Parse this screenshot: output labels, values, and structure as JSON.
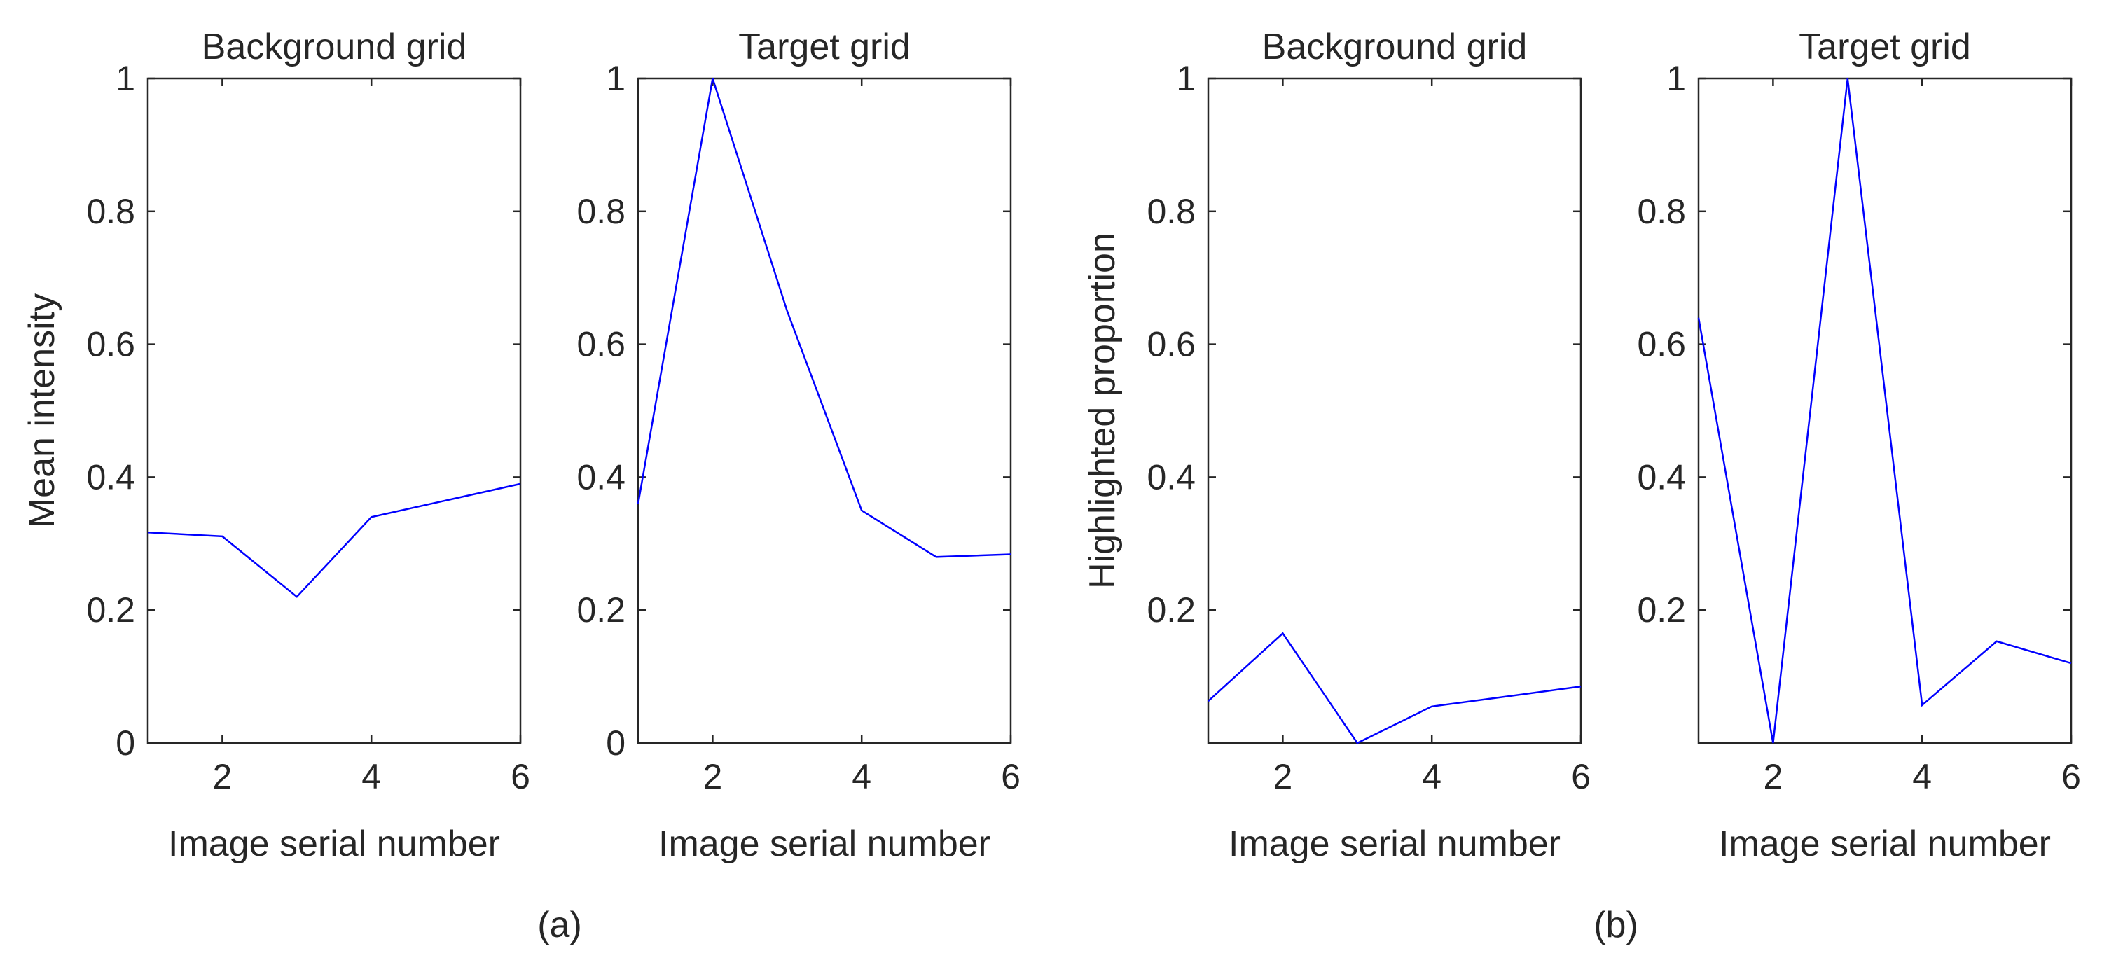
{
  "panel_labels": [
    "(a)",
    "(b)"
  ],
  "colors": {
    "line": "#0000ff",
    "axis": "#262626",
    "background": "#ffffff"
  },
  "chart_data": [
    {
      "type": "line",
      "title": "Background grid",
      "xlabel": "Image serial number",
      "ylabel": "Mean intensity",
      "xlim": [
        1,
        6
      ],
      "ylim": [
        0,
        1
      ],
      "xticks": [
        2,
        4,
        6
      ],
      "yticks": [
        0,
        0.2,
        0.4,
        0.6,
        0.8,
        1
      ],
      "grid": false,
      "series": [
        {
          "x": [
            1,
            2,
            3,
            4,
            5,
            6
          ],
          "y": [
            0.317,
            0.311,
            0.22,
            0.34,
            0.365,
            0.39
          ]
        }
      ]
    },
    {
      "type": "line",
      "title": "Target grid",
      "xlabel": "Image serial number",
      "ylabel": "",
      "xlim": [
        1,
        6
      ],
      "ylim": [
        0,
        1
      ],
      "xticks": [
        2,
        4,
        6
      ],
      "yticks": [
        0,
        0.2,
        0.4,
        0.6,
        0.8,
        1
      ],
      "grid": false,
      "series": [
        {
          "x": [
            1,
            2,
            3,
            4,
            5,
            6
          ],
          "y": [
            0.36,
            1.0,
            0.65,
            0.35,
            0.28,
            0.284
          ]
        }
      ]
    },
    {
      "type": "line",
      "title": "Background grid",
      "xlabel": "Image serial number",
      "ylabel": "Highlighted proportion",
      "xlim": [
        1,
        6
      ],
      "ylim": [
        0,
        1
      ],
      "xticks": [
        2,
        4,
        6
      ],
      "yticks": [
        0.2,
        0.4,
        0.6,
        0.8,
        1
      ],
      "grid": false,
      "series": [
        {
          "x": [
            1,
            2,
            3,
            4,
            5,
            6
          ],
          "y": [
            0.063,
            0.165,
            0.0,
            0.055,
            0.07,
            0.085
          ]
        }
      ]
    },
    {
      "type": "line",
      "title": "Target grid",
      "xlabel": "Image serial number",
      "ylabel": "",
      "xlim": [
        1,
        6
      ],
      "ylim": [
        0,
        1
      ],
      "xticks": [
        2,
        4,
        6
      ],
      "yticks": [
        0.2,
        0.4,
        0.6,
        0.8,
        1
      ],
      "grid": false,
      "series": [
        {
          "x": [
            1,
            2,
            3,
            4,
            5,
            6
          ],
          "y": [
            0.64,
            0.0,
            1.0,
            0.057,
            0.153,
            0.12
          ]
        }
      ]
    }
  ]
}
